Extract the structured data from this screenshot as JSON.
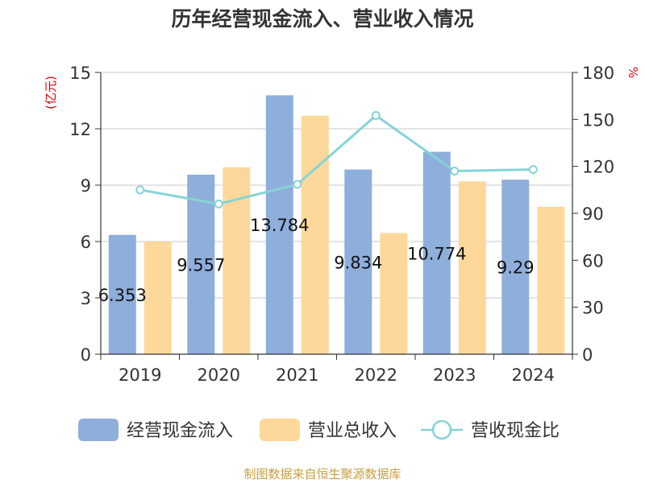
{
  "chart_data": {
    "type": "bar",
    "title": "历年经营现金流入、营业收入情况",
    "categories": [
      "2019",
      "2020",
      "2021",
      "2022",
      "2023",
      "2024"
    ],
    "series": [
      {
        "name": "经营现金流入",
        "type": "bar",
        "axis": "left",
        "values": [
          6.353,
          9.557,
          13.784,
          9.834,
          10.774,
          9.29
        ],
        "color": "#8eaedb"
      },
      {
        "name": "营业总收入",
        "type": "bar",
        "axis": "left",
        "values": [
          6.0,
          9.95,
          12.7,
          6.45,
          9.2,
          7.85
        ],
        "color": "#fdd89a"
      },
      {
        "name": "营收现金比",
        "type": "line",
        "axis": "right",
        "values": [
          105.0,
          96.0,
          108.5,
          152.5,
          117.0,
          118.0
        ],
        "color": "#86d3d6"
      }
    ],
    "data_labels": [
      "6.353",
      "9.557",
      "13.784",
      "9.834",
      "10.774",
      "9.29"
    ],
    "y_left": {
      "unit": "(亿元)",
      "ylim": [
        0,
        15
      ],
      "ticks": [
        "0",
        "3",
        "6",
        "9",
        "12",
        "15"
      ]
    },
    "y_right": {
      "unit": "%",
      "ylim": [
        0,
        180
      ],
      "ticks": [
        "0",
        "30",
        "60",
        "90",
        "120",
        "150",
        "180"
      ]
    },
    "grid": true,
    "legend_position": "bottom"
  },
  "source_note": "制图数据来自恒生聚源数据库",
  "colors": {
    "grid": "#c8c8c8",
    "axis": "#333333",
    "unit": "#e00000",
    "source": "#c8a040"
  }
}
